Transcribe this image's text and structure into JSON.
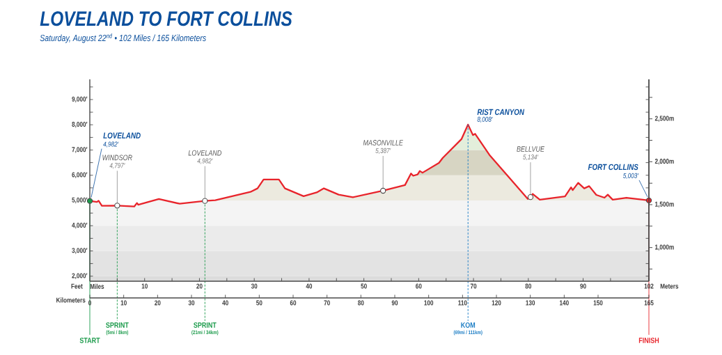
{
  "chart_data": {
    "type": "line",
    "title": "LOVELAND TO FORT COLLINS",
    "subtitle": "Saturday, August 22$^{nd}$ • 102 Miles / 165 Kilometers",
    "xlabel": "Miles",
    "ylabel": "Feet",
    "y2label": "Meters",
    "x2label": "Kilometers",
    "xlim": [
      0,
      102
    ],
    "xticks": [
      {
        "value": 5,
        "label": null
      },
      10,
      {
        "value": 15,
        "label": null
      },
      20,
      {
        "value": 25,
        "label": null
      },
      30,
      {
        "value": 35,
        "label": null
      },
      40,
      {
        "value": 45,
        "label": null
      },
      50,
      {
        "value": 55,
        "label": null
      },
      60,
      {
        "value": 65,
        "label": null
      },
      70,
      {
        "value": 75,
        "label": null
      },
      80,
      {
        "value": 85,
        "label": null
      },
      90,
      {
        "value": 95,
        "label": null
      },
      102
    ],
    "ylim": [
      1800,
      9800
    ],
    "yticks": [
      {
        "value": 2000,
        "label": "2,000′"
      },
      {
        "value": 2500,
        "label": null
      },
      {
        "value": 3000,
        "label": "3,000′"
      },
      {
        "value": 3500,
        "label": null
      },
      {
        "value": 4000,
        "label": "4,000′"
      },
      {
        "value": 4500,
        "label": null
      },
      {
        "value": 5000,
        "label": "5,000′"
      },
      {
        "value": 5500,
        "label": null
      },
      {
        "value": 6000,
        "label": "6,000′"
      },
      {
        "value": 6500,
        "label": null
      },
      {
        "value": 7000,
        "label": "7,000′"
      },
      {
        "value": 7500,
        "label": null
      },
      {
        "value": 8000,
        "label": "8,000′"
      },
      {
        "value": 8500,
        "label": null
      },
      {
        "value": 9000,
        "label": "9,000′"
      },
      {
        "value": 9500,
        "label": null
      }
    ],
    "x2lim": [
      0,
      165
    ],
    "x2ticks": [
      0,
      10,
      20,
      30,
      40,
      50,
      60,
      70,
      80,
      90,
      100,
      110,
      120,
      130,
      140,
      150,
      165
    ],
    "y2lim": [
      608,
      2960
    ],
    "y2ticks": [
      {
        "value": 750,
        "label": null
      },
      {
        "value": 1000,
        "label": "1,000m"
      },
      {
        "value": 1250,
        "label": null
      },
      {
        "value": 1500,
        "label": "1,500m"
      },
      {
        "value": 1750,
        "label": null
      },
      {
        "value": 2000,
        "label": "2,000m"
      },
      {
        "value": 2250,
        "label": null
      },
      {
        "value": 2500,
        "label": "2,500m"
      },
      {
        "value": 2750,
        "label": null
      }
    ],
    "series": [
      {
        "color": "#e8242b",
        "x": [
          0,
          1.3,
          1.6,
          2.2,
          5,
          8.1,
          8.6,
          8.85,
          12.6,
          16.4,
          21,
          22.9,
          29.3,
          30.6,
          31.7,
          34.5,
          35.6,
          39,
          41.4,
          42.7,
          45.4,
          48,
          53.5,
          57.5,
          58.6,
          59,
          59.8,
          60.2,
          60.7,
          63.7,
          64.4,
          67.8,
          69,
          69.9,
          70.3,
          72.9,
          79.9,
          80.4,
          80.8,
          82.1,
          86.7,
          87.8,
          88.1,
          89.1,
          90.2,
          91.1,
          92.4,
          93.9,
          94.5,
          95.4,
          97.9,
          102
        ],
        "values": [
          4982,
          4940,
          4990,
          4790,
          4797,
          4760,
          4900,
          4830,
          5060,
          4870,
          4982,
          5010,
          5340,
          5480,
          5830,
          5830,
          5480,
          5170,
          5320,
          5480,
          5230,
          5130,
          5387,
          5610,
          6070,
          5980,
          6030,
          6170,
          6100,
          6490,
          6690,
          7430,
          8008,
          7590,
          7640,
          6810,
          5060,
          5134,
          5260,
          5030,
          5160,
          5520,
          5410,
          5700,
          5480,
          5570,
          5220,
          5110,
          5230,
          5030,
          5110,
          5003
        ]
      },
      {
        "type": "scatter",
        "marker": "circle",
        "x": [
          0,
          5,
          21,
          53.5,
          80.4,
          102
        ],
        "values": [
          4982,
          4797,
          4982,
          5387,
          5134,
          5003
        ],
        "colors": [
          "#1a9a4a",
          "#ffffff",
          "#ffffff",
          "#ffffff",
          "#ffffff",
          "#e8242b"
        ]
      }
    ],
    "bands": [
      {
        "axis": "y",
        "from": 1800,
        "to": 2000,
        "color": "#dcdcdc"
      },
      {
        "axis": "y",
        "from": 2000,
        "to": 3000,
        "color": "#e3e3e3"
      },
      {
        "axis": "y",
        "from": 3000,
        "to": 4000,
        "color": "#ebebeb"
      },
      {
        "axis": "y",
        "from": 4000,
        "to": 5000,
        "color": "#f4f4f4"
      },
      {
        "axis": "y",
        "from": 5000,
        "to": 6000,
        "color": "#eceadf"
      },
      {
        "axis": "y",
        "from": 6000,
        "to": 7000,
        "color": "#d7d5c3"
      },
      {
        "axis": "y",
        "from": 7000,
        "to": 8000,
        "color": "#e3eedb"
      }
    ],
    "ref_lines": [
      {
        "axis": "x",
        "value": 0,
        "label": "START",
        "color": "#1a9a4a",
        "line_style": "solid"
      },
      {
        "axis": "x",
        "value": 5,
        "label": "SPRINT",
        "color": "#1a9a4a",
        "line_style": "dashed"
      },
      {
        "axis": "x",
        "value": 21,
        "label": "SPRINT",
        "color": "#1a9a4a",
        "line_style": "dashed"
      },
      {
        "axis": "x",
        "value": 69,
        "label": "KOM",
        "color": "#1a7cc4",
        "line_style": "dashed"
      },
      {
        "axis": "x",
        "value": 102,
        "label": "FINISH",
        "color": "#e8242b",
        "line_style": "solid"
      }
    ],
    "annotations": [
      "LOVELAND",
      {
        "text": "4,982′",
        "x": 0,
        "y": 4982
      },
      "WINDSOR",
      {
        "text": "4,797′",
        "x": 5,
        "y": 4797
      },
      "LOVELAND",
      {
        "text": "4,982′",
        "x": 21,
        "y": 4982
      },
      "MASONVILLE",
      {
        "text": "5,387′",
        "x": 53.5,
        "y": 5387
      },
      "RIST CANYON",
      {
        "text": "8,008′",
        "x": 69,
        "y": 8008
      },
      "BELLVUE",
      {
        "text": "5,134′",
        "x": 80.4,
        "y": 5134
      },
      "FORT COLLINS",
      {
        "text": "5,003′",
        "x": 102,
        "y": 5003
      },
      "(5mi / 8km)",
      "(21mi / 34km)",
      "(69mi / 111km)"
    ]
  }
}
